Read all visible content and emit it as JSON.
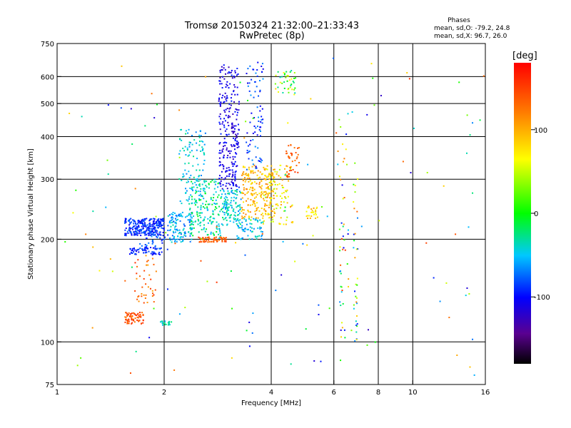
{
  "chart_data": {
    "type": "scatter",
    "title": "Tromsø 20150324 21:32:00–21:33:43",
    "subtitle": "RwPretec (8p)",
    "info": {
      "heading": "Phases",
      "line1": "mean, sd,O: -79.2, 24.8",
      "line2": "mean, sd,X:  96.7, 26.0"
    },
    "xlabel": "Frequency [MHz]",
    "ylabel": "Stationary phase Virtual Height [km]",
    "xscale": "log",
    "yscale": "log",
    "xlim": [
      1,
      16
    ],
    "ylim": [
      75,
      750
    ],
    "xticks": [
      1,
      2,
      4,
      6,
      8,
      10,
      16
    ],
    "xgrid": [
      2,
      4,
      6,
      8,
      10
    ],
    "yticks": [
      75,
      100,
      200,
      300,
      400,
      500,
      600,
      750
    ],
    "ygrid": [
      100,
      200,
      300,
      400,
      500,
      600
    ],
    "colorbar": {
      "label": "[deg]",
      "range": [
        -180,
        180
      ],
      "ticks": [
        100,
        0,
        -100
      ]
    },
    "clusters": [
      {
        "f": [
          1.55,
          2.0
        ],
        "h": [
          205,
          230
        ],
        "phase": [
          -110,
          -70
        ],
        "n": 260
      },
      {
        "f": [
          1.6,
          2.0
        ],
        "h": [
          180,
          190
        ],
        "phase": [
          -110,
          -80
        ],
        "n": 60
      },
      {
        "f": [
          1.7,
          2.05
        ],
        "h": [
          185,
          215
        ],
        "phase": [
          -100,
          -60
        ],
        "n": 40
      },
      {
        "f": [
          2.05,
          2.4
        ],
        "h": [
          195,
          240
        ],
        "phase": [
          -80,
          -30
        ],
        "n": 120
      },
      {
        "f": [
          2.2,
          2.6
        ],
        "h": [
          250,
          420
        ],
        "phase": [
          -70,
          -20
        ],
        "n": 110
      },
      {
        "f": [
          2.35,
          2.9
        ],
        "h": [
          205,
          300
        ],
        "phase": [
          -60,
          0
        ],
        "n": 180
      },
      {
        "f": [
          2.5,
          3.0
        ],
        "h": [
          196,
          203
        ],
        "phase": [
          120,
          160
        ],
        "n": 60
      },
      {
        "f": [
          2.85,
          3.25
        ],
        "h": [
          280,
          650
        ],
        "phase": [
          -130,
          -90
        ],
        "n": 260
      },
      {
        "f": [
          2.9,
          3.3
        ],
        "h": [
          220,
          280
        ],
        "phase": [
          -70,
          -20
        ],
        "n": 120
      },
      {
        "f": [
          3.2,
          3.8
        ],
        "h": [
          200,
          230
        ],
        "phase": [
          -70,
          -30
        ],
        "n": 70
      },
      {
        "f": [
          3.3,
          4.1
        ],
        "h": [
          230,
          330
        ],
        "phase": [
          70,
          120
        ],
        "n": 220
      },
      {
        "f": [
          3.4,
          3.8
        ],
        "h": [
          320,
          660
        ],
        "phase": [
          -110,
          -60
        ],
        "n": 80
      },
      {
        "f": [
          3.8,
          4.6
        ],
        "h": [
          220,
          330
        ],
        "phase": [
          40,
          110
        ],
        "n": 100
      },
      {
        "f": [
          4.1,
          4.7
        ],
        "h": [
          530,
          620
        ],
        "phase": [
          -40,
          90
        ],
        "n": 40
      },
      {
        "f": [
          4.4,
          4.8
        ],
        "h": [
          300,
          380
        ],
        "phase": [
          120,
          160
        ],
        "n": 40
      },
      {
        "f": [
          5.0,
          5.4
        ],
        "h": [
          230,
          250
        ],
        "phase": [
          60,
          110
        ],
        "n": 25
      },
      {
        "f": [
          1.55,
          1.75
        ],
        "h": [
          113,
          122
        ],
        "phase": [
          120,
          160
        ],
        "n": 70
      },
      {
        "f": [
          1.95,
          2.1
        ],
        "h": [
          112,
          115
        ],
        "phase": [
          -60,
          -20
        ],
        "n": 20
      },
      {
        "f": [
          1.65,
          1.9
        ],
        "h": [
          130,
          180
        ],
        "phase": [
          100,
          160
        ],
        "n": 40
      },
      {
        "f": [
          6.2,
          6.6
        ],
        "h": [
          100,
          460
        ],
        "phase": [
          -120,
          160
        ],
        "n": 45
      },
      {
        "f": [
          6.8,
          7.0
        ],
        "h": [
          100,
          300
        ],
        "phase": [
          -100,
          140
        ],
        "n": 30
      },
      {
        "f": [
          1.0,
          16.0
        ],
        "h": [
          78,
          700
        ],
        "phase": [
          -130,
          160
        ],
        "n": 150
      }
    ]
  }
}
